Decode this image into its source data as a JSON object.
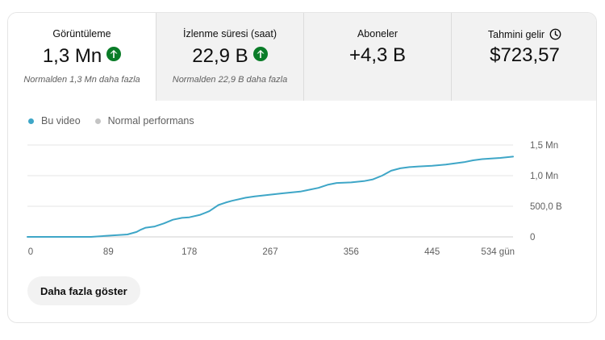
{
  "metrics": [
    {
      "label": "Görüntüleme",
      "value": "1,3 Mn",
      "trend": "up",
      "note": "Normalden 1,3 Mn daha fazla",
      "active": true
    },
    {
      "label": "İzlenme süresi (saat)",
      "value": "22,9 B",
      "trend": "up",
      "note": "Normalden 22,9 B daha fazla",
      "active": false
    },
    {
      "label": "Aboneler",
      "value": "+4,3 B",
      "trend": "",
      "note": "",
      "active": false
    },
    {
      "label": "Tahmini gelir",
      "value": "$723,57",
      "trend": "",
      "note": "",
      "active": false,
      "icon": "clock-icon"
    }
  ],
  "legend": {
    "this_video": "Bu video",
    "normal": "Normal performans"
  },
  "colors": {
    "series": "#3ea6c7",
    "normal_dot": "#c4c4c4",
    "trend_up": "#0a7c28",
    "grid": "#e5e5e5"
  },
  "chart_data": {
    "type": "line",
    "x_ticks": [
      "0",
      "89",
      "178",
      "267",
      "356",
      "445",
      "534 gün"
    ],
    "x_tick_values": [
      0,
      89,
      178,
      267,
      356,
      445,
      534
    ],
    "y_ticks": [
      "0",
      "500,0 B",
      "1,0 Mn",
      "1,5 Mn"
    ],
    "y_tick_values": [
      0,
      500000,
      1000000,
      1500000
    ],
    "xlim": [
      0,
      534
    ],
    "ylim": [
      0,
      1500000
    ],
    "series": [
      {
        "name": "Bu video",
        "x": [
          0,
          40,
          70,
          89,
          110,
          120,
          125,
          130,
          140,
          150,
          160,
          170,
          178,
          190,
          200,
          210,
          218,
          225,
          240,
          250,
          267,
          280,
          300,
          310,
          320,
          330,
          340,
          356,
          370,
          380,
          390,
          400,
          410,
          420,
          430,
          445,
          460,
          470,
          480,
          490,
          500,
          510,
          520,
          534
        ],
        "y": [
          0,
          0,
          0,
          20000,
          40000,
          80000,
          120000,
          150000,
          170000,
          220000,
          280000,
          310000,
          320000,
          360000,
          420000,
          520000,
          560000,
          590000,
          640000,
          660000,
          690000,
          710000,
          740000,
          770000,
          800000,
          850000,
          880000,
          890000,
          910000,
          940000,
          1000000,
          1080000,
          1120000,
          1140000,
          1150000,
          1160000,
          1180000,
          1200000,
          1220000,
          1250000,
          1270000,
          1280000,
          1290000,
          1310000
        ]
      }
    ],
    "grid": true,
    "legend_position": "top-left"
  },
  "actions": {
    "show_more": "Daha fazla göster"
  }
}
